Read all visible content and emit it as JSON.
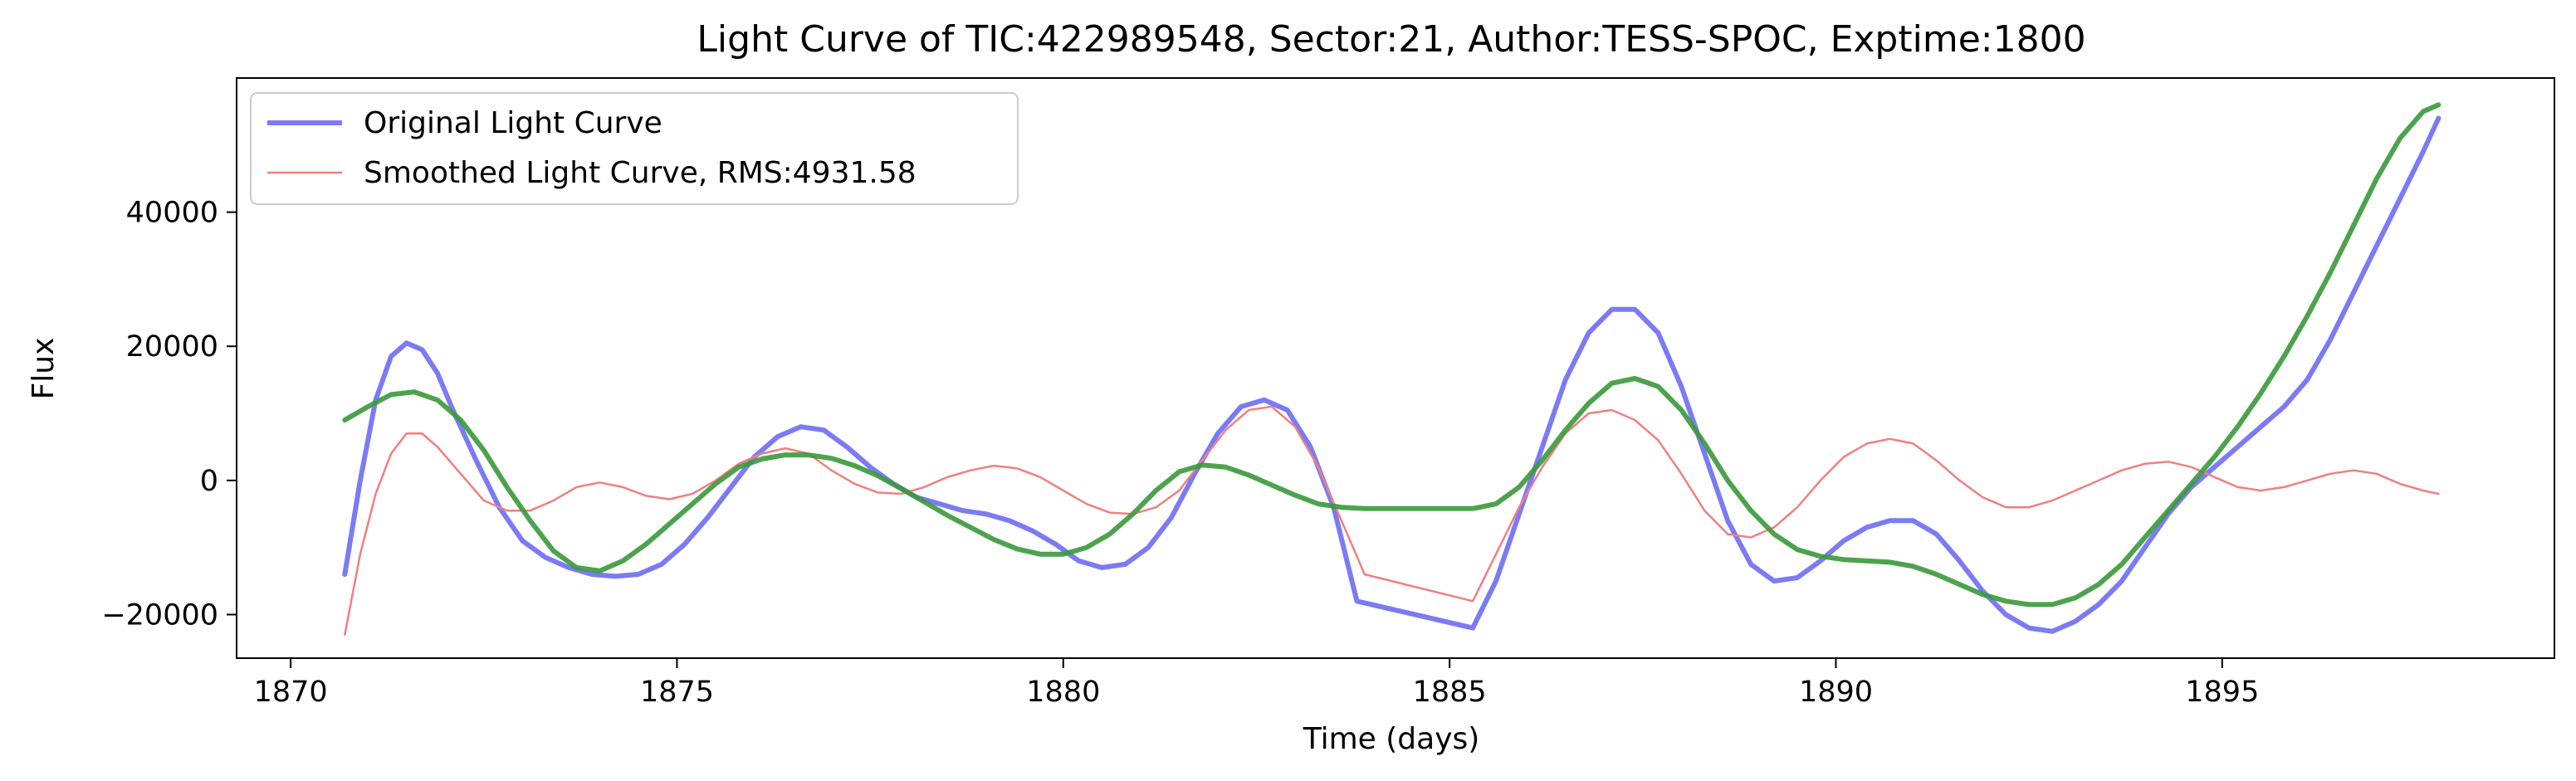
{
  "chart_data": {
    "type": "line",
    "title": "Light Curve of TIC:422989548, Sector:21, Author:TESS-SPOC, Exptime:1800",
    "xlabel": "Time (days)",
    "ylabel": "Flux",
    "xlim": [
      1869.3,
      1899.3
    ],
    "ylim": [
      -26500,
      60000
    ],
    "grid": false,
    "legend_position": "top-left",
    "xticks": [
      1870,
      1875,
      1880,
      1885,
      1890,
      1895
    ],
    "xtick_labels": [
      "1870",
      "1875",
      "1880",
      "1885",
      "1890",
      "1895"
    ],
    "yticks": [
      -20000,
      0,
      20000,
      40000
    ],
    "ytick_labels": [
      "−20000",
      "0",
      "20000",
      "40000"
    ],
    "series": [
      {
        "name": "Original Light Curve",
        "color": "#7b7bf5",
        "x": [
          1870.7,
          1870.9,
          1871.1,
          1871.3,
          1871.5,
          1871.7,
          1871.9,
          1872.1,
          1872.4,
          1872.7,
          1873.0,
          1873.3,
          1873.6,
          1873.9,
          1874.2,
          1874.5,
          1874.8,
          1875.1,
          1875.4,
          1875.7,
          1876.0,
          1876.3,
          1876.6,
          1876.9,
          1877.2,
          1877.5,
          1877.8,
          1878.1,
          1878.4,
          1878.7,
          1879.0,
          1879.3,
          1879.6,
          1879.9,
          1880.2,
          1880.5,
          1880.8,
          1881.1,
          1881.4,
          1881.7,
          1882.0,
          1882.3,
          1882.6,
          1882.9,
          1883.2,
          1883.5,
          1883.8,
          1885.3,
          1885.6,
          1885.9,
          1886.2,
          1886.5,
          1886.8,
          1887.1,
          1887.4,
          1887.7,
          1888.0,
          1888.3,
          1888.6,
          1888.9,
          1889.2,
          1889.5,
          1889.8,
          1890.1,
          1890.4,
          1890.7,
          1891.0,
          1891.3,
          1891.6,
          1891.9,
          1892.2,
          1892.5,
          1892.8,
          1893.1,
          1893.4,
          1893.7,
          1894.0,
          1894.3,
          1894.6,
          1894.9,
          1895.2,
          1895.5,
          1895.8,
          1896.1,
          1896.4,
          1896.7,
          1897.0,
          1897.3,
          1897.6,
          1897.8
        ],
        "y": [
          -14000,
          0,
          12000,
          18500,
          20500,
          19500,
          16000,
          10500,
          3000,
          -4000,
          -9000,
          -11500,
          -13000,
          -14000,
          -14300,
          -14000,
          -12500,
          -9500,
          -5500,
          -1000,
          3500,
          6500,
          8000,
          7500,
          5000,
          2000,
          -500,
          -2500,
          -3500,
          -4500,
          -5000,
          -6000,
          -7500,
          -9500,
          -12000,
          -13000,
          -12500,
          -10000,
          -5500,
          1000,
          7000,
          11000,
          12000,
          10500,
          5000,
          -4000,
          -18000,
          -22000,
          -15000,
          -5000,
          5000,
          15000,
          22000,
          25500,
          25500,
          22000,
          14000,
          4000,
          -6000,
          -12500,
          -15000,
          -14500,
          -12000,
          -9000,
          -7000,
          -6000,
          -6000,
          -8000,
          -12000,
          -16500,
          -20000,
          -22000,
          -22500,
          -21000,
          -18500,
          -15000,
          -10000,
          -5000,
          -1000,
          2000,
          5000,
          8000,
          11000,
          15000,
          21000,
          28000,
          35000,
          42000,
          49000,
          54000
        ]
      },
      {
        "name": "Smoothed Light Curve, RMS:4931.58",
        "color": "#f08080",
        "x": [
          1870.7,
          1870.9,
          1871.1,
          1871.3,
          1871.5,
          1871.7,
          1871.9,
          1872.2,
          1872.5,
          1872.8,
          1873.1,
          1873.4,
          1873.7,
          1874.0,
          1874.3,
          1874.6,
          1874.9,
          1875.2,
          1875.5,
          1875.8,
          1876.1,
          1876.4,
          1876.7,
          1877.0,
          1877.3,
          1877.6,
          1877.9,
          1878.2,
          1878.5,
          1878.8,
          1879.1,
          1879.4,
          1879.7,
          1880.0,
          1880.3,
          1880.6,
          1880.9,
          1881.2,
          1881.5,
          1881.8,
          1882.1,
          1882.4,
          1882.7,
          1883.0,
          1883.3,
          1883.6,
          1883.9,
          1885.3,
          1885.6,
          1885.9,
          1886.2,
          1886.5,
          1886.8,
          1887.1,
          1887.4,
          1887.7,
          1888.0,
          1888.3,
          1888.6,
          1888.9,
          1889.2,
          1889.5,
          1889.8,
          1890.1,
          1890.4,
          1890.7,
          1891.0,
          1891.3,
          1891.6,
          1891.9,
          1892.2,
          1892.5,
          1892.8,
          1893.1,
          1893.4,
          1893.7,
          1894.0,
          1894.3,
          1894.6,
          1894.9,
          1895.2,
          1895.5,
          1895.8,
          1896.1,
          1896.4,
          1896.7,
          1897.0,
          1897.3,
          1897.6,
          1897.8
        ],
        "y": [
          -23000,
          -11000,
          -2000,
          4000,
          7000,
          7000,
          5000,
          1000,
          -3000,
          -4500,
          -4500,
          -3000,
          -1000,
          -300,
          -1000,
          -2300,
          -2800,
          -2000,
          0,
          2500,
          4000,
          4800,
          4000,
          1500,
          -500,
          -1800,
          -2000,
          -1000,
          500,
          1500,
          2200,
          1800,
          500,
          -1500,
          -3500,
          -4800,
          -5000,
          -4000,
          -1500,
          3000,
          7500,
          10500,
          11000,
          8000,
          2000,
          -6000,
          -14000,
          -18000,
          -11000,
          -4000,
          2000,
          7000,
          10000,
          10500,
          9000,
          6000,
          1000,
          -4500,
          -8000,
          -8500,
          -7000,
          -4000,
          0,
          3500,
          5500,
          6200,
          5500,
          3000,
          0,
          -2500,
          -4000,
          -4000,
          -3000,
          -1500,
          0,
          1500,
          2500,
          2800,
          2000,
          500,
          -1000,
          -1500,
          -1000,
          0,
          1000,
          1500,
          1000,
          -500,
          -1500,
          -2000
        ]
      },
      {
        "name": "",
        "color": "#3a993a",
        "x": [
          1870.7,
          1871.0,
          1871.3,
          1871.6,
          1871.9,
          1872.2,
          1872.5,
          1872.8,
          1873.1,
          1873.4,
          1873.7,
          1874.0,
          1874.3,
          1874.6,
          1874.9,
          1875.2,
          1875.5,
          1875.8,
          1876.1,
          1876.4,
          1876.7,
          1877.0,
          1877.3,
          1877.6,
          1877.9,
          1878.2,
          1878.5,
          1878.8,
          1879.1,
          1879.4,
          1879.7,
          1880.0,
          1880.3,
          1880.6,
          1880.9,
          1881.2,
          1881.5,
          1881.8,
          1882.1,
          1882.4,
          1882.7,
          1883.0,
          1883.3,
          1883.6,
          1883.9,
          1885.3,
          1885.6,
          1885.9,
          1886.2,
          1886.5,
          1886.8,
          1887.1,
          1887.4,
          1887.7,
          1888.0,
          1888.3,
          1888.6,
          1888.9,
          1889.2,
          1889.5,
          1889.8,
          1890.1,
          1890.4,
          1890.7,
          1891.0,
          1891.3,
          1891.6,
          1891.9,
          1892.2,
          1892.5,
          1892.8,
          1893.1,
          1893.4,
          1893.7,
          1894.0,
          1894.3,
          1894.6,
          1894.9,
          1895.2,
          1895.5,
          1895.8,
          1896.1,
          1896.4,
          1896.7,
          1897.0,
          1897.3,
          1897.6,
          1897.8
        ],
        "y": [
          9000,
          11000,
          12800,
          13200,
          12000,
          9000,
          4500,
          -1000,
          -6000,
          -10500,
          -13000,
          -13500,
          -12000,
          -9500,
          -6500,
          -3500,
          -500,
          2000,
          3200,
          3800,
          3800,
          3300,
          2200,
          700,
          -1200,
          -3200,
          -5200,
          -7000,
          -8800,
          -10200,
          -11000,
          -11000,
          -10000,
          -8000,
          -5000,
          -1500,
          1300,
          2300,
          2000,
          800,
          -700,
          -2200,
          -3500,
          -4000,
          -4200,
          -4200,
          -3500,
          -1000,
          3000,
          7500,
          11500,
          14500,
          15200,
          14000,
          10500,
          5500,
          0,
          -4500,
          -8000,
          -10300,
          -11300,
          -11800,
          -12000,
          -12200,
          -12800,
          -14000,
          -15500,
          -17000,
          -18000,
          -18500,
          -18500,
          -17500,
          -15500,
          -12500,
          -8500,
          -4500,
          -500,
          3500,
          8000,
          13000,
          18500,
          24500,
          31000,
          38000,
          45000,
          51000,
          55000,
          56000
        ]
      }
    ]
  }
}
